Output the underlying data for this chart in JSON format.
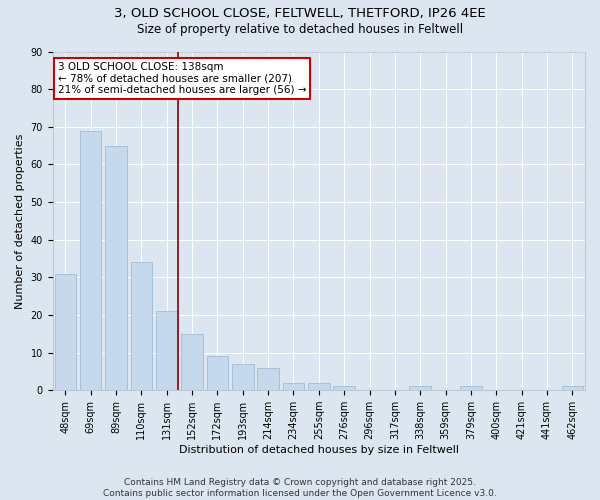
{
  "title1": "3, OLD SCHOOL CLOSE, FELTWELL, THETFORD, IP26 4EE",
  "title2": "Size of property relative to detached houses in Feltwell",
  "xlabel": "Distribution of detached houses by size in Feltwell",
  "ylabel": "Number of detached properties",
  "categories": [
    "48sqm",
    "69sqm",
    "89sqm",
    "110sqm",
    "131sqm",
    "152sqm",
    "172sqm",
    "193sqm",
    "214sqm",
    "234sqm",
    "255sqm",
    "276sqm",
    "296sqm",
    "317sqm",
    "338sqm",
    "359sqm",
    "379sqm",
    "400sqm",
    "421sqm",
    "441sqm",
    "462sqm"
  ],
  "values": [
    31,
    69,
    65,
    34,
    21,
    15,
    9,
    7,
    6,
    2,
    2,
    1,
    0,
    0,
    1,
    0,
    1,
    0,
    0,
    0,
    1
  ],
  "bar_color": "#c5d8ec",
  "bar_edge_color": "#a0bdd4",
  "vline_x_index": 4,
  "vline_color": "#8b0000",
  "annotation_line1": "3 OLD SCHOOL CLOSE: 138sqm",
  "annotation_line2": "← 78% of detached houses are smaller (207)",
  "annotation_line3": "21% of semi-detached houses are larger (56) →",
  "annotation_box_color": "#ffffff",
  "annotation_box_edge_color": "#cc0000",
  "ylim": [
    0,
    90
  ],
  "yticks": [
    0,
    10,
    20,
    30,
    40,
    50,
    60,
    70,
    80,
    90
  ],
  "bg_color": "#dce6f0",
  "plot_bg_color": "#dce6f0",
  "grid_color": "#ffffff",
  "footer_text": "Contains HM Land Registry data © Crown copyright and database right 2025.\nContains public sector information licensed under the Open Government Licence v3.0.",
  "title_fontsize": 9.5,
  "subtitle_fontsize": 8.5,
  "axis_label_fontsize": 8,
  "tick_fontsize": 7,
  "annotation_fontsize": 7.5,
  "footer_fontsize": 6.5
}
